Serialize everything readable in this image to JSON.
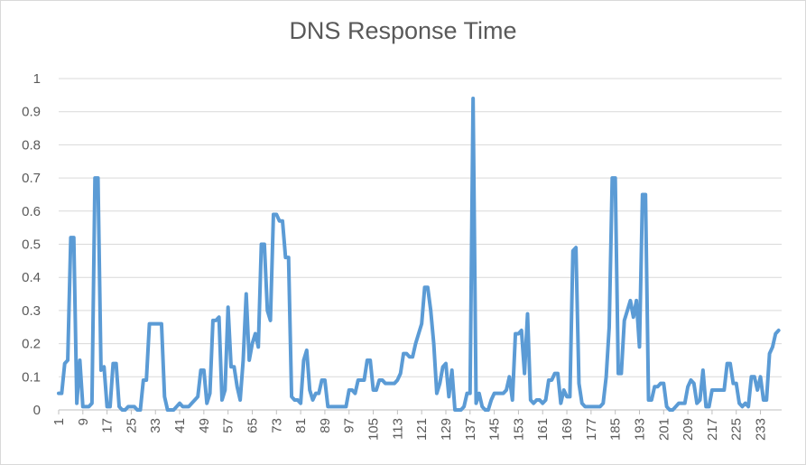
{
  "chart_data": {
    "type": "line",
    "title": "DNS Response Time",
    "xlabel": "",
    "ylabel": "",
    "ylim": [
      0,
      1
    ],
    "yticks": [
      "0",
      "0.1",
      "0.2",
      "0.3",
      "0.4",
      "0.5",
      "0.6",
      "0.7",
      "0.8",
      "0.9",
      "1"
    ],
    "xticks": [
      "1",
      "9",
      "17",
      "25",
      "33",
      "41",
      "49",
      "57",
      "65",
      "73",
      "81",
      "89",
      "97",
      "105",
      "113",
      "121",
      "129",
      "137",
      "145",
      "153",
      "161",
      "169",
      "177",
      "185",
      "193",
      "201",
      "209",
      "217",
      "225",
      "233"
    ],
    "grid": true,
    "legend": "none",
    "color": "#5b9bd5",
    "x_start": 1,
    "x_end": 240,
    "series": [
      {
        "values": [
          0.05,
          0.05,
          0.14,
          0.15,
          0.52,
          0.52,
          0.02,
          0.15,
          0.01,
          0.01,
          0.01,
          0.02,
          0.7,
          0.7,
          0.12,
          0.13,
          0.01,
          0.01,
          0.14,
          0.14,
          0.01,
          0.0,
          0.0,
          0.01,
          0.01,
          0.01,
          0.0,
          0.0,
          0.09,
          0.09,
          0.26,
          0.26,
          0.26,
          0.26,
          0.26,
          0.04,
          0.0,
          0.0,
          0.0,
          0.01,
          0.02,
          0.01,
          0.01,
          0.01,
          0.02,
          0.03,
          0.04,
          0.12,
          0.12,
          0.02,
          0.05,
          0.27,
          0.27,
          0.28,
          0.03,
          0.06,
          0.31,
          0.13,
          0.13,
          0.07,
          0.03,
          0.15,
          0.35,
          0.15,
          0.2,
          0.23,
          0.19,
          0.5,
          0.5,
          0.3,
          0.27,
          0.59,
          0.59,
          0.57,
          0.57,
          0.46,
          0.46,
          0.04,
          0.03,
          0.03,
          0.02,
          0.15,
          0.18,
          0.06,
          0.03,
          0.05,
          0.05,
          0.09,
          0.09,
          0.01,
          0.01,
          0.01,
          0.01,
          0.01,
          0.01,
          0.01,
          0.06,
          0.06,
          0.05,
          0.09,
          0.09,
          0.09,
          0.15,
          0.15,
          0.06,
          0.06,
          0.09,
          0.09,
          0.08,
          0.08,
          0.08,
          0.08,
          0.09,
          0.11,
          0.17,
          0.17,
          0.16,
          0.16,
          0.2,
          0.23,
          0.26,
          0.37,
          0.37,
          0.3,
          0.2,
          0.05,
          0.08,
          0.13,
          0.14,
          0.04,
          0.12,
          0.0,
          0.0,
          0.0,
          0.01,
          0.05,
          0.05,
          0.94,
          0.02,
          0.05,
          0.01,
          0.0,
          0.0,
          0.03,
          0.05,
          0.05,
          0.05,
          0.05,
          0.06,
          0.1,
          0.03,
          0.23,
          0.23,
          0.24,
          0.11,
          0.29,
          0.03,
          0.02,
          0.03,
          0.03,
          0.02,
          0.03,
          0.09,
          0.09,
          0.11,
          0.11,
          0.02,
          0.06,
          0.04,
          0.04,
          0.48,
          0.49,
          0.08,
          0.02,
          0.01,
          0.01,
          0.01,
          0.01,
          0.01,
          0.01,
          0.02,
          0.1,
          0.25,
          0.7,
          0.7,
          0.11,
          0.11,
          0.27,
          0.3,
          0.33,
          0.28,
          0.33,
          0.19,
          0.65,
          0.65,
          0.03,
          0.03,
          0.07,
          0.07,
          0.08,
          0.08,
          0.01,
          0.0,
          0.0,
          0.01,
          0.02,
          0.02,
          0.02,
          0.07,
          0.09,
          0.08,
          0.02,
          0.03,
          0.12,
          0.01,
          0.01,
          0.06,
          0.06,
          0.06,
          0.06,
          0.06,
          0.14,
          0.14,
          0.08,
          0.08,
          0.02,
          0.01,
          0.02,
          0.01,
          0.1,
          0.1,
          0.06,
          0.1,
          0.03,
          0.03,
          0.17,
          0.19,
          0.23,
          0.24
        ]
      }
    ]
  }
}
